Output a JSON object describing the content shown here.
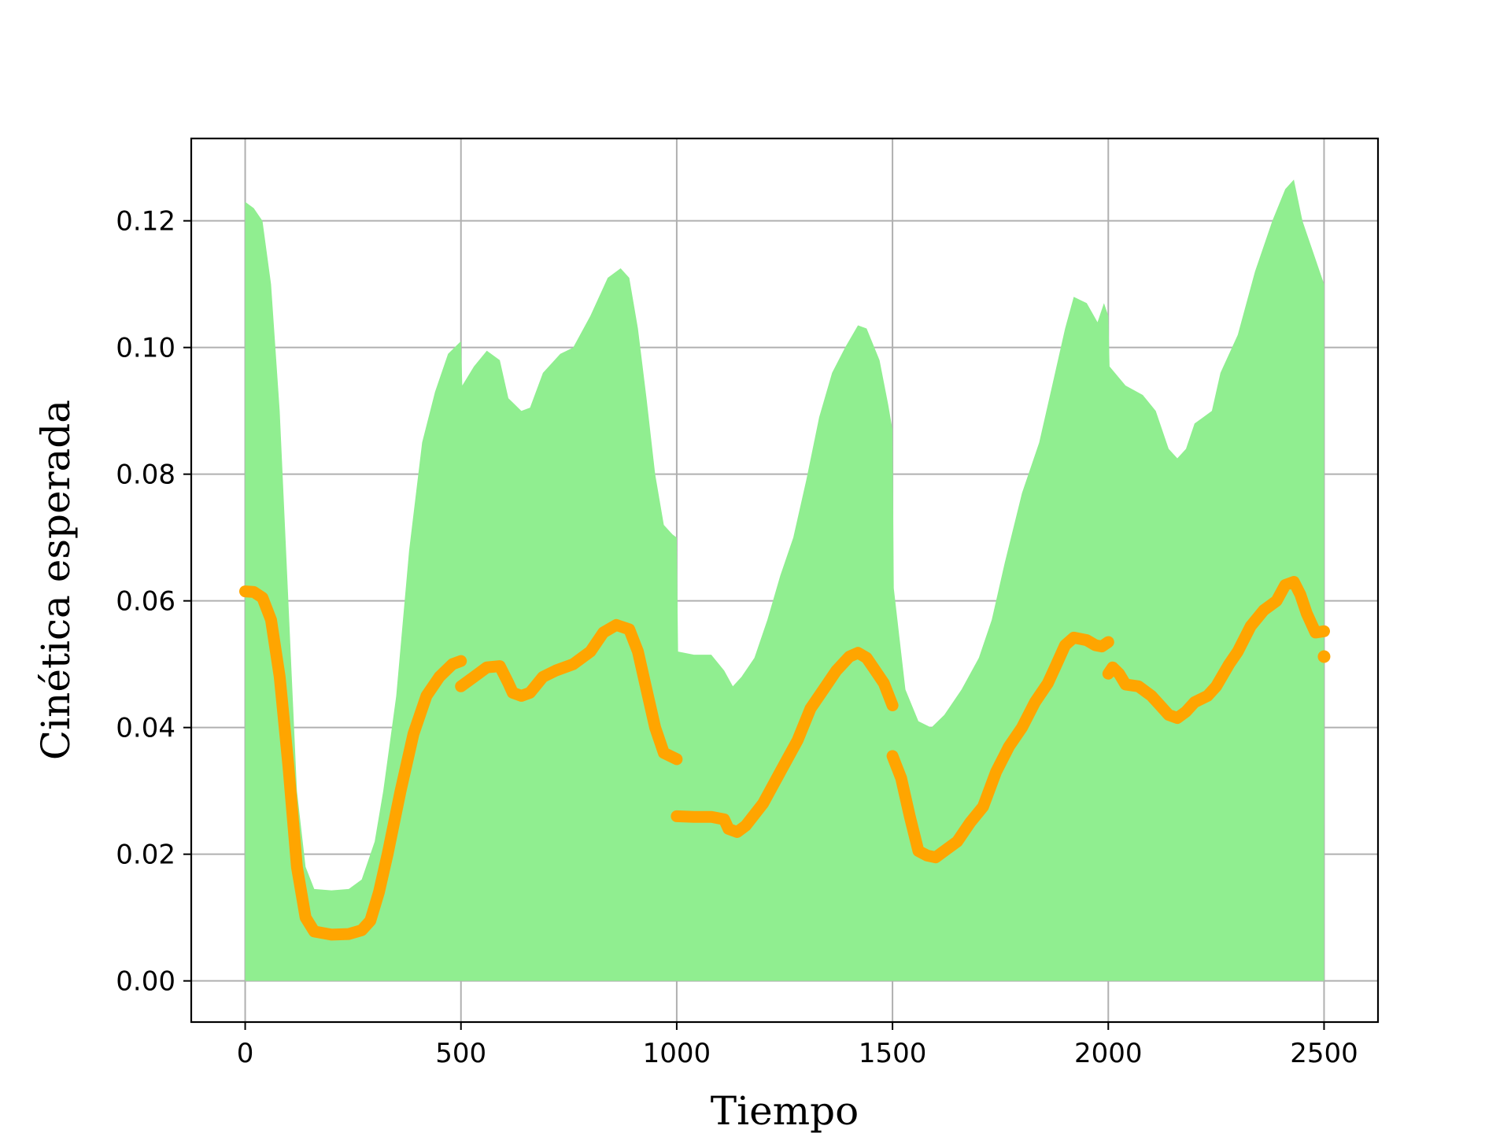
{
  "chart_data": {
    "type": "area",
    "title": "",
    "xlabel": "Tiempo",
    "ylabel": "Cinética esperada",
    "xlim": [
      -125,
      2625
    ],
    "ylim": [
      -0.0065,
      0.133
    ],
    "xticks": [
      0,
      500,
      1000,
      1500,
      2000,
      2500
    ],
    "xtick_labels": [
      "0",
      "500",
      "1000",
      "1500",
      "2000",
      "2500"
    ],
    "yticks": [
      0.0,
      0.02,
      0.04,
      0.06,
      0.08,
      0.1,
      0.12
    ],
    "ytick_labels": [
      "0.00",
      "0.02",
      "0.04",
      "0.06",
      "0.08",
      "0.10",
      "0.12"
    ],
    "grid": true,
    "colors": {
      "band": "#90ee90",
      "line": "#ffa500"
    },
    "band": {
      "lower": 0.0,
      "upper": [
        [
          0,
          0.123
        ],
        [
          20,
          0.122
        ],
        [
          40,
          0.12
        ],
        [
          60,
          0.11
        ],
        [
          80,
          0.09
        ],
        [
          100,
          0.06
        ],
        [
          120,
          0.03
        ],
        [
          140,
          0.018
        ],
        [
          160,
          0.0145
        ],
        [
          200,
          0.0143
        ],
        [
          240,
          0.0145
        ],
        [
          270,
          0.016
        ],
        [
          300,
          0.022
        ],
        [
          320,
          0.03
        ],
        [
          350,
          0.045
        ],
        [
          380,
          0.068
        ],
        [
          410,
          0.085
        ],
        [
          440,
          0.093
        ],
        [
          470,
          0.099
        ],
        [
          500,
          0.101
        ],
        [
          503,
          0.094
        ],
        [
          530,
          0.097
        ],
        [
          560,
          0.0995
        ],
        [
          590,
          0.098
        ],
        [
          610,
          0.092
        ],
        [
          640,
          0.09
        ],
        [
          660,
          0.0905
        ],
        [
          690,
          0.096
        ],
        [
          730,
          0.099
        ],
        [
          760,
          0.1
        ],
        [
          800,
          0.105
        ],
        [
          840,
          0.111
        ],
        [
          870,
          0.1125
        ],
        [
          890,
          0.111
        ],
        [
          910,
          0.103
        ],
        [
          930,
          0.092
        ],
        [
          950,
          0.08
        ],
        [
          970,
          0.072
        ],
        [
          990,
          0.0705
        ],
        [
          1000,
          0.07
        ],
        [
          1003,
          0.052
        ],
        [
          1040,
          0.0515
        ],
        [
          1080,
          0.0515
        ],
        [
          1110,
          0.049
        ],
        [
          1130,
          0.0465
        ],
        [
          1150,
          0.048
        ],
        [
          1180,
          0.051
        ],
        [
          1210,
          0.057
        ],
        [
          1240,
          0.064
        ],
        [
          1270,
          0.07
        ],
        [
          1300,
          0.079
        ],
        [
          1330,
          0.089
        ],
        [
          1360,
          0.096
        ],
        [
          1390,
          0.1
        ],
        [
          1420,
          0.1035
        ],
        [
          1440,
          0.103
        ],
        [
          1470,
          0.098
        ],
        [
          1490,
          0.091
        ],
        [
          1500,
          0.087
        ],
        [
          1503,
          0.062
        ],
        [
          1530,
          0.046
        ],
        [
          1560,
          0.041
        ],
        [
          1590,
          0.04
        ],
        [
          1620,
          0.042
        ],
        [
          1660,
          0.046
        ],
        [
          1700,
          0.051
        ],
        [
          1730,
          0.057
        ],
        [
          1760,
          0.066
        ],
        [
          1800,
          0.077
        ],
        [
          1840,
          0.085
        ],
        [
          1870,
          0.094
        ],
        [
          1900,
          0.103
        ],
        [
          1920,
          0.108
        ],
        [
          1950,
          0.107
        ],
        [
          1975,
          0.104
        ],
        [
          1990,
          0.107
        ],
        [
          2000,
          0.105
        ],
        [
          2003,
          0.097
        ],
        [
          2040,
          0.094
        ],
        [
          2080,
          0.0925
        ],
        [
          2110,
          0.09
        ],
        [
          2140,
          0.084
        ],
        [
          2160,
          0.0825
        ],
        [
          2180,
          0.084
        ],
        [
          2200,
          0.088
        ],
        [
          2240,
          0.09
        ],
        [
          2260,
          0.096
        ],
        [
          2300,
          0.102
        ],
        [
          2340,
          0.112
        ],
        [
          2380,
          0.12
        ],
        [
          2410,
          0.125
        ],
        [
          2430,
          0.1265
        ],
        [
          2450,
          0.12
        ],
        [
          2480,
          0.114
        ],
        [
          2500,
          0.11
        ]
      ]
    },
    "series": [
      {
        "segments": [
          [
            [
              0,
              0.0615
            ],
            [
              20,
              0.0614
            ],
            [
              40,
              0.0605
            ],
            [
              60,
              0.057
            ],
            [
              80,
              0.048
            ],
            [
              100,
              0.034
            ],
            [
              120,
              0.018
            ],
            [
              140,
              0.01
            ],
            [
              160,
              0.0078
            ],
            [
              200,
              0.0073
            ],
            [
              240,
              0.0074
            ],
            [
              270,
              0.008
            ],
            [
              290,
              0.0095
            ],
            [
              310,
              0.014
            ],
            [
              330,
              0.02
            ],
            [
              360,
              0.03
            ],
            [
              390,
              0.039
            ],
            [
              420,
              0.045
            ],
            [
              450,
              0.048
            ],
            [
              480,
              0.05
            ],
            [
              500,
              0.0505
            ]
          ],
          [
            [
              500,
              0.0465
            ],
            [
              530,
              0.048
            ],
            [
              560,
              0.0495
            ],
            [
              590,
              0.0497
            ],
            [
              610,
              0.047
            ],
            [
              620,
              0.0455
            ],
            [
              640,
              0.045
            ],
            [
              660,
              0.0455
            ],
            [
              690,
              0.048
            ],
            [
              720,
              0.049
            ],
            [
              760,
              0.05
            ],
            [
              800,
              0.052
            ],
            [
              830,
              0.055
            ],
            [
              860,
              0.0562
            ],
            [
              890,
              0.0555
            ],
            [
              910,
              0.052
            ],
            [
              930,
              0.046
            ],
            [
              950,
              0.04
            ],
            [
              970,
              0.036
            ],
            [
              1000,
              0.035
            ]
          ],
          [
            [
              1000,
              0.026
            ],
            [
              1040,
              0.0259
            ],
            [
              1080,
              0.0259
            ],
            [
              1110,
              0.0255
            ],
            [
              1120,
              0.024
            ],
            [
              1140,
              0.0235
            ],
            [
              1160,
              0.0245
            ],
            [
              1200,
              0.028
            ],
            [
              1240,
              0.033
            ],
            [
              1280,
              0.038
            ],
            [
              1310,
              0.043
            ],
            [
              1340,
              0.046
            ],
            [
              1370,
              0.049
            ],
            [
              1400,
              0.0512
            ],
            [
              1420,
              0.0518
            ],
            [
              1440,
              0.051
            ],
            [
              1460,
              0.049
            ],
            [
              1480,
              0.047
            ],
            [
              1500,
              0.0435
            ]
          ],
          [
            [
              1500,
              0.0355
            ],
            [
              1520,
              0.032
            ],
            [
              1540,
              0.026
            ],
            [
              1560,
              0.0205
            ],
            [
              1580,
              0.0198
            ],
            [
              1600,
              0.0195
            ],
            [
              1620,
              0.0205
            ],
            [
              1650,
              0.022
            ],
            [
              1680,
              0.025
            ],
            [
              1710,
              0.0275
            ],
            [
              1740,
              0.033
            ],
            [
              1770,
              0.037
            ],
            [
              1800,
              0.04
            ],
            [
              1830,
              0.044
            ],
            [
              1860,
              0.047
            ],
            [
              1880,
              0.05
            ],
            [
              1900,
              0.053
            ],
            [
              1920,
              0.0542
            ],
            [
              1950,
              0.0538
            ],
            [
              1970,
              0.053
            ],
            [
              1985,
              0.0528
            ],
            [
              2000,
              0.0535
            ]
          ],
          [
            [
              2000,
              0.0485
            ],
            [
              2010,
              0.0495
            ],
            [
              2025,
              0.0485
            ],
            [
              2040,
              0.0468
            ],
            [
              2070,
              0.0465
            ],
            [
              2100,
              0.045
            ],
            [
              2120,
              0.0435
            ],
            [
              2140,
              0.042
            ],
            [
              2160,
              0.0415
            ],
            [
              2180,
              0.0425
            ],
            [
              2200,
              0.044
            ],
            [
              2230,
              0.045
            ],
            [
              2250,
              0.0465
            ],
            [
              2280,
              0.05
            ],
            [
              2300,
              0.052
            ],
            [
              2330,
              0.056
            ],
            [
              2360,
              0.0585
            ],
            [
              2390,
              0.06
            ],
            [
              2410,
              0.0625
            ],
            [
              2430,
              0.063
            ],
            [
              2445,
              0.061
            ],
            [
              2460,
              0.058
            ],
            [
              2480,
              0.055
            ],
            [
              2500,
              0.0552
            ]
          ],
          [
            [
              2500,
              0.0512
            ]
          ]
        ]
      }
    ]
  }
}
